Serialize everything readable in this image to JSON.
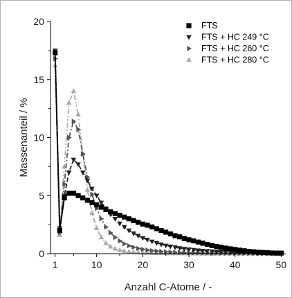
{
  "chart_data": {
    "type": "line",
    "xlabel": "Anzahl C-Atome / -",
    "ylabel": "Massenanteil / %",
    "xlim": [
      0,
      51
    ],
    "ylim": [
      0,
      20
    ],
    "x_ticks": [
      1,
      10,
      20,
      30,
      40,
      50
    ],
    "y_ticks": [
      0,
      5,
      10,
      15,
      20
    ],
    "grid": false,
    "legend_position": "top-right",
    "x": [
      1,
      2,
      3,
      4,
      5,
      6,
      7,
      8,
      9,
      10,
      11,
      12,
      13,
      14,
      15,
      16,
      17,
      18,
      19,
      20,
      21,
      22,
      23,
      24,
      25,
      26,
      27,
      28,
      29,
      30,
      31,
      32,
      33,
      34,
      35,
      36,
      37,
      38,
      39,
      40,
      41,
      42,
      43,
      44,
      45,
      46,
      47,
      48,
      49,
      50
    ],
    "series": [
      {
        "name": "FTS",
        "marker": "square",
        "color": "#000000",
        "line_style": "solid",
        "values": [
          17.3,
          2.0,
          4.8,
          5.2,
          5.2,
          5.0,
          4.8,
          4.6,
          4.4,
          4.2,
          4.0,
          3.8,
          3.6,
          3.45,
          3.3,
          3.15,
          3.0,
          2.85,
          2.7,
          2.55,
          2.45,
          2.3,
          2.15,
          2.0,
          1.85,
          1.7,
          1.55,
          1.45,
          1.3,
          1.2,
          1.1,
          1.0,
          0.9,
          0.8,
          0.7,
          0.62,
          0.55,
          0.48,
          0.42,
          0.36,
          0.3,
          0.25,
          0.2,
          0.16,
          0.12,
          0.1,
          0.08,
          0.06,
          0.05,
          0.05
        ]
      },
      {
        "name": "FTS + HC 249 °C",
        "marker": "triangle-down",
        "color": "#222222",
        "line_style": "dash",
        "values": [
          17.5,
          2.2,
          5.0,
          7.0,
          8.1,
          7.7,
          7.0,
          6.3,
          5.6,
          5.0,
          4.4,
          3.9,
          3.4,
          3.0,
          2.6,
          2.3,
          2.0,
          1.75,
          1.55,
          1.35,
          1.2,
          1.05,
          0.92,
          0.8,
          0.7,
          0.62,
          0.55,
          0.48,
          0.42,
          0.37,
          0.33,
          0.29,
          0.26,
          0.23,
          0.2,
          0.18,
          0.16,
          0.14,
          0.12,
          0.11,
          0.1,
          0.09,
          0.08,
          0.07,
          0.06,
          0.05,
          0.05,
          0.04,
          0.04,
          0.03
        ]
      },
      {
        "name": "FTS + HC 260 °C",
        "marker": "triangle-right",
        "color": "#555555",
        "line_style": "dash-dot",
        "values": [
          16.8,
          1.8,
          6.0,
          10.0,
          11.4,
          10.7,
          8.6,
          6.6,
          5.1,
          3.9,
          3.0,
          2.3,
          1.8,
          1.4,
          1.1,
          0.85,
          0.68,
          0.55,
          0.45,
          0.37,
          0.31,
          0.26,
          0.22,
          0.19,
          0.16,
          0.14,
          0.12,
          0.1,
          0.09,
          0.08,
          0.07,
          0.06,
          0.05,
          0.05,
          0.04,
          0.04,
          0.03,
          0.03,
          0.03,
          0.02,
          0.02,
          0.02,
          0.02,
          0.02,
          0.01,
          0.01,
          0.01,
          0.01,
          0.01,
          0.01
        ]
      },
      {
        "name": "FTS + HC 280 °C",
        "marker": "triangle-up",
        "color": "#aaaaaa",
        "line_style": "dash-dot-dot",
        "values": [
          16.2,
          1.6,
          7.5,
          13.0,
          14.0,
          12.0,
          8.6,
          5.5,
          3.5,
          2.2,
          1.4,
          0.9,
          0.6,
          0.42,
          0.3,
          0.22,
          0.16,
          0.12,
          0.1,
          0.08,
          0.06,
          0.05,
          0.04,
          0.04,
          0.03,
          0.03,
          0.02,
          0.02,
          0.02,
          0.02,
          0.01,
          0.01,
          0.01,
          0.01,
          0.01,
          0.01,
          0.01,
          0.01,
          0.01,
          0.01,
          0.01,
          0.01,
          0.01,
          0.01,
          0.01,
          0.01,
          0.01,
          0.01,
          0.01,
          0.01
        ]
      }
    ]
  }
}
